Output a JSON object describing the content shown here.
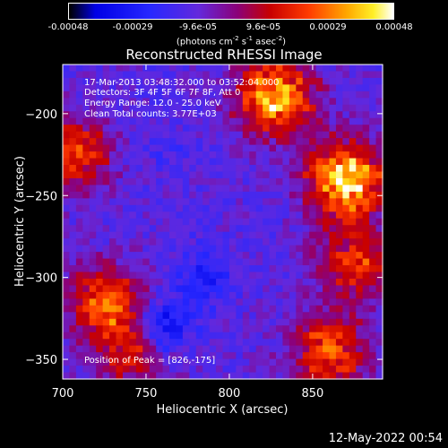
{
  "colorbar": {
    "ticks": [
      "-0.00048",
      "-0.00029",
      "-9.6e-05",
      "9.6e-05",
      "0.00029",
      "0.00048"
    ],
    "unit_prefix": "(photons cm",
    "unit_exp1": "-2",
    "unit_mid1": " s",
    "unit_exp2": "-1",
    "unit_mid2": " asec",
    "unit_exp3": "-2",
    "unit_suffix": ")",
    "scale": "black-blue-purple-red-orange-yellow-white"
  },
  "title": "Reconstructed RHESSI Image",
  "annotations": {
    "time_range": "17-Mar-2013 03:48:32.000 to 03:52:04.000",
    "detectors": "Detectors: 3F 4F 5F 6F 7F 8F, Att 0",
    "energy": "Energy Range: 12.0 - 25.0 keV",
    "clean": "Clean     Total counts: 3.77E+03",
    "peak": "Position of Peak = [826,-175]"
  },
  "footer": {
    "date": "12-May-2022 00:54"
  },
  "chart_data": {
    "type": "heatmap",
    "title": "Reconstructed RHESSI Image",
    "xlabel": "Heliocentric X (arcsec)",
    "ylabel": "Heliocentric Y (arcsec)",
    "xlim": [
      700,
      892
    ],
    "ylim": [
      -362,
      -170
    ],
    "x_ticks": [
      700,
      750,
      800,
      850
    ],
    "y_ticks": [
      -200,
      -250,
      -300,
      -350
    ],
    "x_tick_labels": [
      "700",
      "750",
      "800",
      "850"
    ],
    "y_tick_labels": [
      "−200",
      "−250",
      "−300",
      "−350"
    ],
    "value_range": [
      -0.00048,
      0.00048
    ],
    "peak": {
      "x": 826,
      "y": -175
    },
    "hot_regions": [
      {
        "x": 870,
        "y": -240,
        "value": 0.00045
      },
      {
        "x": 828,
        "y": -190,
        "value": 0.0004
      },
      {
        "x": 875,
        "y": -290,
        "value": 0.0002
      },
      {
        "x": 860,
        "y": -345,
        "value": 0.00025
      },
      {
        "x": 725,
        "y": -315,
        "value": 0.00025
      },
      {
        "x": 706,
        "y": -225,
        "value": 0.00022
      },
      {
        "x": 742,
        "y": -345,
        "value": 0.00015
      }
    ],
    "cold_regions": [
      {
        "x": 760,
        "y": -330,
        "value": -0.00035
      },
      {
        "x": 785,
        "y": -300,
        "value": -0.00025
      },
      {
        "x": 760,
        "y": -220,
        "value": -0.00015
      }
    ]
  }
}
